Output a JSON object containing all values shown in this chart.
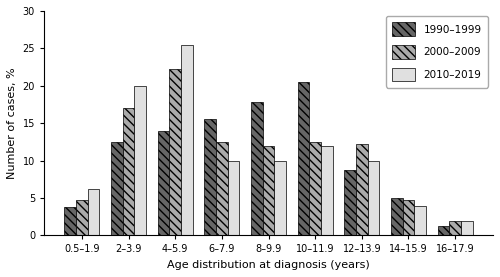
{
  "categories": [
    "0.5–1.9",
    "2–3.9",
    "4–5.9",
    "6–7.9",
    "8–9.9",
    "10–11.9",
    "12–13.9",
    "14–15.9",
    "16–17.9"
  ],
  "series": {
    "1990–1999": [
      3.8,
      12.5,
      14.0,
      15.5,
      17.8,
      20.5,
      8.8,
      5.0,
      1.2
    ],
    "2000–2009": [
      4.7,
      17.0,
      22.2,
      12.5,
      12.0,
      12.5,
      12.2,
      4.8,
      2.0
    ],
    "2010–2019": [
      6.2,
      20.0,
      25.5,
      10.0,
      10.0,
      12.0,
      10.0,
      4.0,
      2.0
    ]
  },
  "colors": {
    "1990–1999": "#666666",
    "2000–2009": "#aaaaaa",
    "2010–2019": "#e0e0e0"
  },
  "hatches": {
    "1990–1999": "\\\\\\\\",
    "2000–2009": "\\\\\\\\",
    "2010–2019": ""
  },
  "ylabel": "Number of cases, %",
  "xlabel": "Age distribution at diagnosis (years)",
  "ylim": [
    0,
    30
  ],
  "yticks": [
    0,
    5,
    10,
    15,
    20,
    25,
    30
  ],
  "legend_labels": [
    "1990–1999",
    "2000–2009",
    "2010–2019"
  ],
  "bar_width": 0.25
}
